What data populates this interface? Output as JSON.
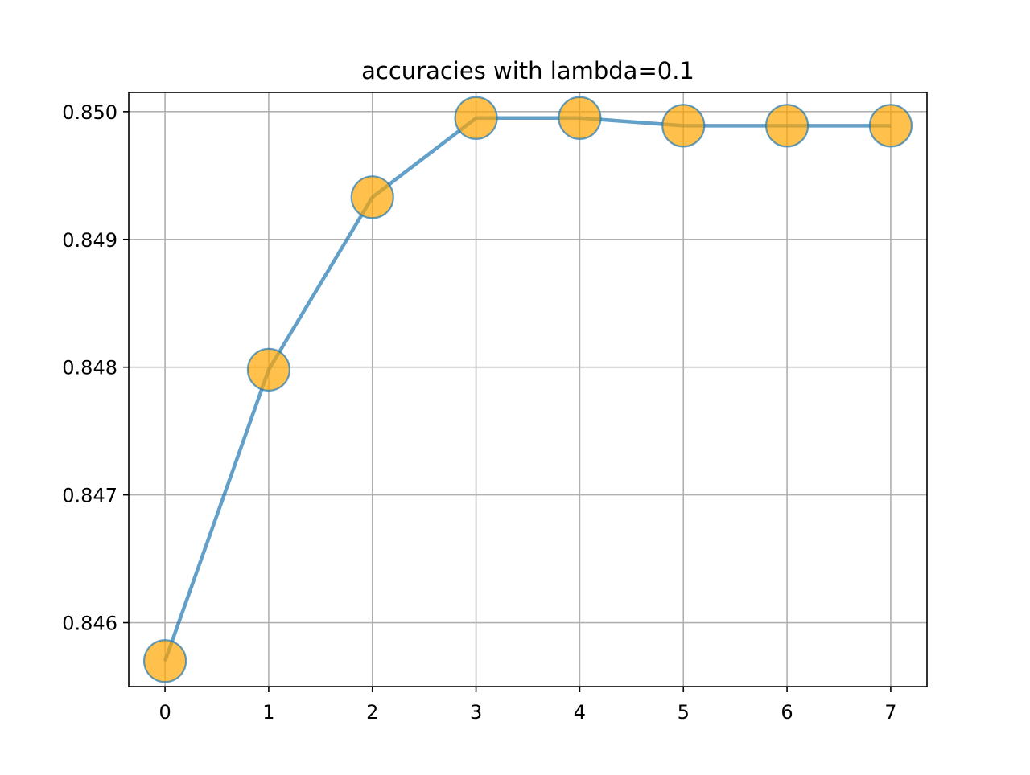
{
  "chart_data": {
    "type": "line",
    "title": "accuracies with lambda=0.1",
    "xlabel": "",
    "ylabel": "",
    "x": [
      0,
      1,
      2,
      3,
      4,
      5,
      6,
      7
    ],
    "series": [
      {
        "values": [
          0.8457,
          0.84798,
          0.84933,
          0.84995,
          0.84995,
          0.84989,
          0.84989,
          0.84989
        ]
      }
    ],
    "xlim": [
      -0.35,
      7.35
    ],
    "ylim": [
      0.8455,
      0.85015
    ],
    "xticks": [
      0,
      1,
      2,
      3,
      4,
      5,
      6,
      7
    ],
    "xtick_labels": [
      "0",
      "1",
      "2",
      "3",
      "4",
      "5",
      "6",
      "7"
    ],
    "yticks": [
      0.846,
      0.847,
      0.848,
      0.849,
      0.85
    ],
    "ytick_labels": [
      "0.846",
      "0.847",
      "0.848",
      "0.849",
      "0.850"
    ],
    "grid": true,
    "colors": {
      "line": "#1f77b4",
      "marker_fill": "#ffa500",
      "marker_edge": "#1f77b4",
      "grid": "#b0b0b0",
      "axes": "#000000"
    }
  }
}
